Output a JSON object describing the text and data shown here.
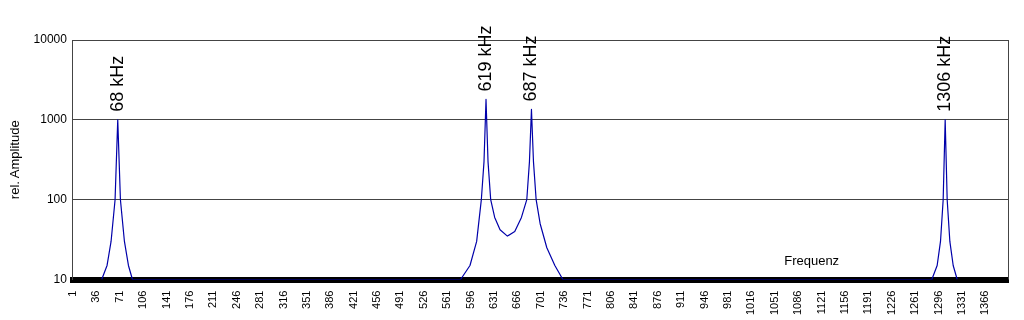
{
  "chart_data": {
    "type": "line",
    "xlabel": "Frequenz",
    "ylabel": "rel. Amplitude",
    "log": "y",
    "grid": "y",
    "marker": "none",
    "line_style": "solid",
    "xlim": [
      1,
      1400
    ],
    "xticks": [
      1,
      36,
      71,
      106,
      141,
      176,
      211,
      246,
      281,
      316,
      351,
      386,
      421,
      456,
      491,
      526,
      561,
      596,
      631,
      666,
      701,
      736,
      771,
      806,
      841,
      876,
      911,
      946,
      981,
      1016,
      1051,
      1086,
      1121,
      1156,
      1191,
      1226,
      1261,
      1296,
      1331,
      1366
    ],
    "ylim": [
      10,
      10000
    ],
    "yticks": [
      10,
      100,
      1000,
      10000
    ],
    "series": [
      {
        "color": "#0000aa",
        "x": [
          44,
          52,
          58,
          64,
          68,
          72,
          78,
          84,
          90,
          581,
          595,
          605,
          612,
          616,
          619,
          622,
          626,
          632,
          640,
          651,
          662,
          672,
          680,
          684,
          687,
          690,
          694,
          700,
          710,
          722,
          734,
          1286,
          1294,
          1299,
          1303,
          1306,
          1309,
          1313,
          1318,
          1324
        ],
        "values": [
          10,
          15,
          30,
          100,
          1000,
          100,
          30,
          15,
          10,
          10,
          15,
          30,
          100,
          300,
          1800,
          300,
          100,
          60,
          42,
          35,
          40,
          60,
          100,
          300,
          1350,
          300,
          100,
          50,
          25,
          15,
          10,
          10,
          15,
          30,
          100,
          1000,
          100,
          30,
          15,
          10
        ]
      }
    ],
    "annotations": [
      {
        "text": "68 kHz",
        "x": 68,
        "y": 1000
      },
      {
        "text": "619 kHz",
        "x": 619,
        "y": 1800
      },
      {
        "text": "687 kHz",
        "x": 687,
        "y": 1350
      },
      {
        "text": "1306 kHz",
        "x": 1306,
        "y": 1000
      }
    ]
  }
}
